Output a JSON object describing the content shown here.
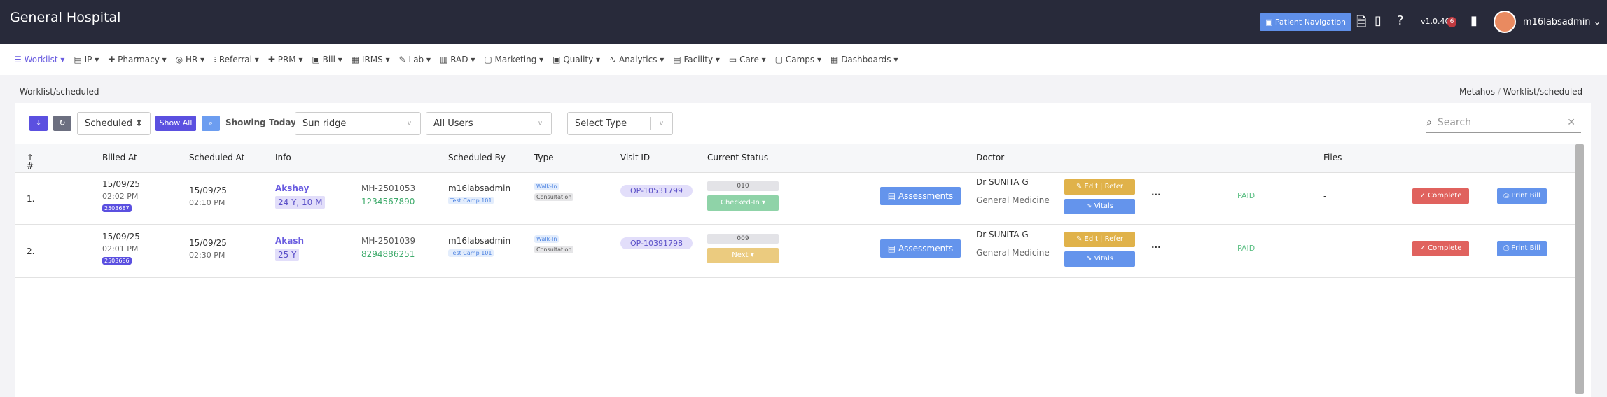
{
  "header": {
    "title": "General Hospital",
    "patient_nav": "Patient Navigation",
    "version": "v1.0.40",
    "notif_count": "6",
    "user": "m16labsadmin",
    "icons": [
      "word-doc-icon",
      "window-icon",
      "help-icon",
      "chat-icon"
    ]
  },
  "nav": [
    "Worklist",
    "IP",
    "Pharmacy",
    "HR",
    "Referral",
    "PRM",
    "Bill",
    "IRMS",
    "Lab",
    "RAD",
    "Marketing",
    "Quality",
    "Analytics",
    "Facility",
    "Care",
    "Camps",
    "Dashboards"
  ],
  "page": {
    "title": "Worklist/scheduled",
    "breadcrumb": [
      "Metahos",
      "Worklist/scheduled"
    ]
  },
  "toolbar": {
    "status": "Scheduled",
    "show_all": "Show All",
    "showing": "Showing Today",
    "location": "Sun ridge",
    "users": "All Users",
    "type_placeholder": "Select Type",
    "search_placeholder": "Search"
  },
  "columns": [
    "#",
    "Billed At",
    "Scheduled At",
    "Info",
    "Scheduled By",
    "Type",
    "Visit ID",
    "Current Status",
    "Doctor",
    "Files"
  ],
  "rows": [
    {
      "n": "1.",
      "billed_date": "15/09/25",
      "billed_time": "02:02 PM",
      "bill_no": "2503687",
      "sched_date": "15/09/25",
      "sched_time": "02:10 PM",
      "name": "Akshay",
      "age": "24 Y, 10 M",
      "mrn": "MH-2501053",
      "phone": "1234567890",
      "by": "m16labsadmin",
      "camp": "Test Camp 101",
      "type1": "Walk-In",
      "type2": "Consultation",
      "visit": "OP-10531799",
      "token": "010",
      "status": "Checked-In",
      "status_color": "#8fd3a8",
      "assess": "Assessments",
      "doctor": "Dr SUNITA G",
      "dept": "General Medicine",
      "edit": "Edit | Refer",
      "vitals": "Vitals",
      "more": "···",
      "pay": "PAID",
      "files": "-",
      "complete": "Complete",
      "print": "Print Bill"
    },
    {
      "n": "2.",
      "billed_date": "15/09/25",
      "billed_time": "02:01 PM",
      "bill_no": "2503686",
      "sched_date": "15/09/25",
      "sched_time": "02:30 PM",
      "name": "Akash",
      "age": "25 Y",
      "mrn": "MH-2501039",
      "phone": "8294886251",
      "by": "m16labsadmin",
      "camp": "Test Camp 101",
      "type1": "Walk-In",
      "type2": "Consultation",
      "visit": "OP-10391798",
      "token": "009",
      "status": "Next",
      "status_color": "#ebcb7f",
      "assess": "Assessments",
      "doctor": "Dr SUNITA G",
      "dept": "General Medicine",
      "edit": "Edit | Refer",
      "vitals": "Vitals",
      "more": "···",
      "pay": "PAID",
      "files": "-",
      "complete": "Complete",
      "print": "Print Bill"
    }
  ]
}
